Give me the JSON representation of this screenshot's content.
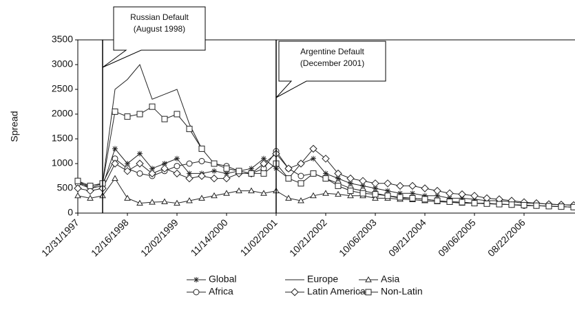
{
  "chart_data": {
    "type": "line",
    "y_label": "Spread",
    "categories": [
      "12/31/1997",
      null,
      null,
      null,
      "12/16/1998",
      null,
      null,
      null,
      "12/02/1999",
      null,
      null,
      null,
      "11/14/2000",
      null,
      null,
      null,
      "11/02/2001",
      null,
      null,
      null,
      "10/21/2002",
      null,
      null,
      null,
      "10/06/2003",
      null,
      null,
      null,
      "09/21/2004",
      null,
      null,
      null,
      "09/06/2005",
      null,
      null,
      null,
      "08/22/2006",
      null,
      null,
      null,
      null,
      null
    ],
    "ylim": [
      0,
      3500
    ],
    "yticks": [
      0,
      500,
      1000,
      1500,
      2000,
      2500,
      3000,
      3500
    ],
    "annotations": [
      {
        "lines": [
          "Russian Default",
          "(August 1998)"
        ]
      },
      {
        "lines": [
          "Argentine Default",
          "(December 2001)"
        ]
      }
    ],
    "series": [
      {
        "name": "Global",
        "color": "#222222",
        "marker": "star",
        "values": [
          600,
          500,
          550,
          1300,
          1000,
          1200,
          900,
          1000,
          1100,
          800,
          800,
          850,
          800,
          850,
          900,
          1100,
          900,
          700,
          1000,
          1100,
          800,
          700,
          600,
          550,
          500,
          450,
          400,
          400,
          350,
          350,
          300,
          300,
          280,
          250,
          250,
          230,
          200,
          200,
          180,
          170,
          160,
          150
        ]
      },
      {
        "name": "Africa",
        "color": "#222222",
        "marker": "circle",
        "values": [
          600,
          550,
          600,
          1100,
          900,
          800,
          750,
          850,
          950,
          1000,
          1050,
          1000,
          950,
          850,
          800,
          900,
          1250,
          900,
          750,
          800,
          700,
          600,
          500,
          450,
          400,
          350,
          300,
          300,
          280,
          250,
          230,
          220,
          200,
          200,
          180,
          170,
          150,
          150,
          140,
          130,
          120,
          100
        ]
      },
      {
        "name": "Europe",
        "color": "#222222",
        "values": [
          650,
          500,
          600,
          2500,
          2700,
          3000,
          2300,
          2400,
          2500,
          1800,
          1300,
          null,
          null,
          null,
          null,
          null,
          null,
          null,
          null,
          null,
          null,
          null,
          null,
          null,
          null,
          null,
          null,
          null,
          null,
          null,
          null,
          null,
          null,
          null,
          null,
          null,
          null,
          null,
          null,
          null,
          null,
          null
        ]
      },
      {
        "name": "Latin America",
        "color": "#222222",
        "marker": "diamond",
        "values": [
          500,
          450,
          500,
          1000,
          850,
          1000,
          800,
          900,
          800,
          700,
          750,
          700,
          700,
          800,
          800,
          1000,
          1200,
          900,
          1000,
          1300,
          1100,
          800,
          700,
          650,
          600,
          600,
          550,
          550,
          500,
          450,
          400,
          380,
          350,
          300,
          280,
          250,
          220,
          200,
          180,
          170,
          160,
          150
        ]
      },
      {
        "name": "Asia",
        "color": "#222222",
        "marker": "triangle",
        "values": [
          350,
          300,
          350,
          700,
          300,
          200,
          220,
          230,
          200,
          250,
          300,
          350,
          400,
          450,
          450,
          400,
          450,
          300,
          250,
          350,
          400,
          380,
          350,
          350,
          300,
          300,
          280,
          270,
          250,
          230,
          220,
          200,
          200,
          190,
          180,
          170,
          160,
          150,
          140,
          130,
          120,
          110
        ]
      },
      {
        "name": "Non-Latin",
        "color": "#222222",
        "marker": "square",
        "values": [
          650,
          550,
          600,
          2050,
          1950,
          2000,
          2150,
          1900,
          2000,
          1700,
          1300,
          1000,
          900,
          850,
          800,
          800,
          1000,
          700,
          600,
          800,
          700,
          550,
          450,
          400,
          380,
          350,
          320,
          300,
          280,
          250,
          230,
          220,
          200,
          190,
          180,
          170,
          160,
          150,
          140,
          130,
          120,
          110
        ]
      }
    ]
  }
}
